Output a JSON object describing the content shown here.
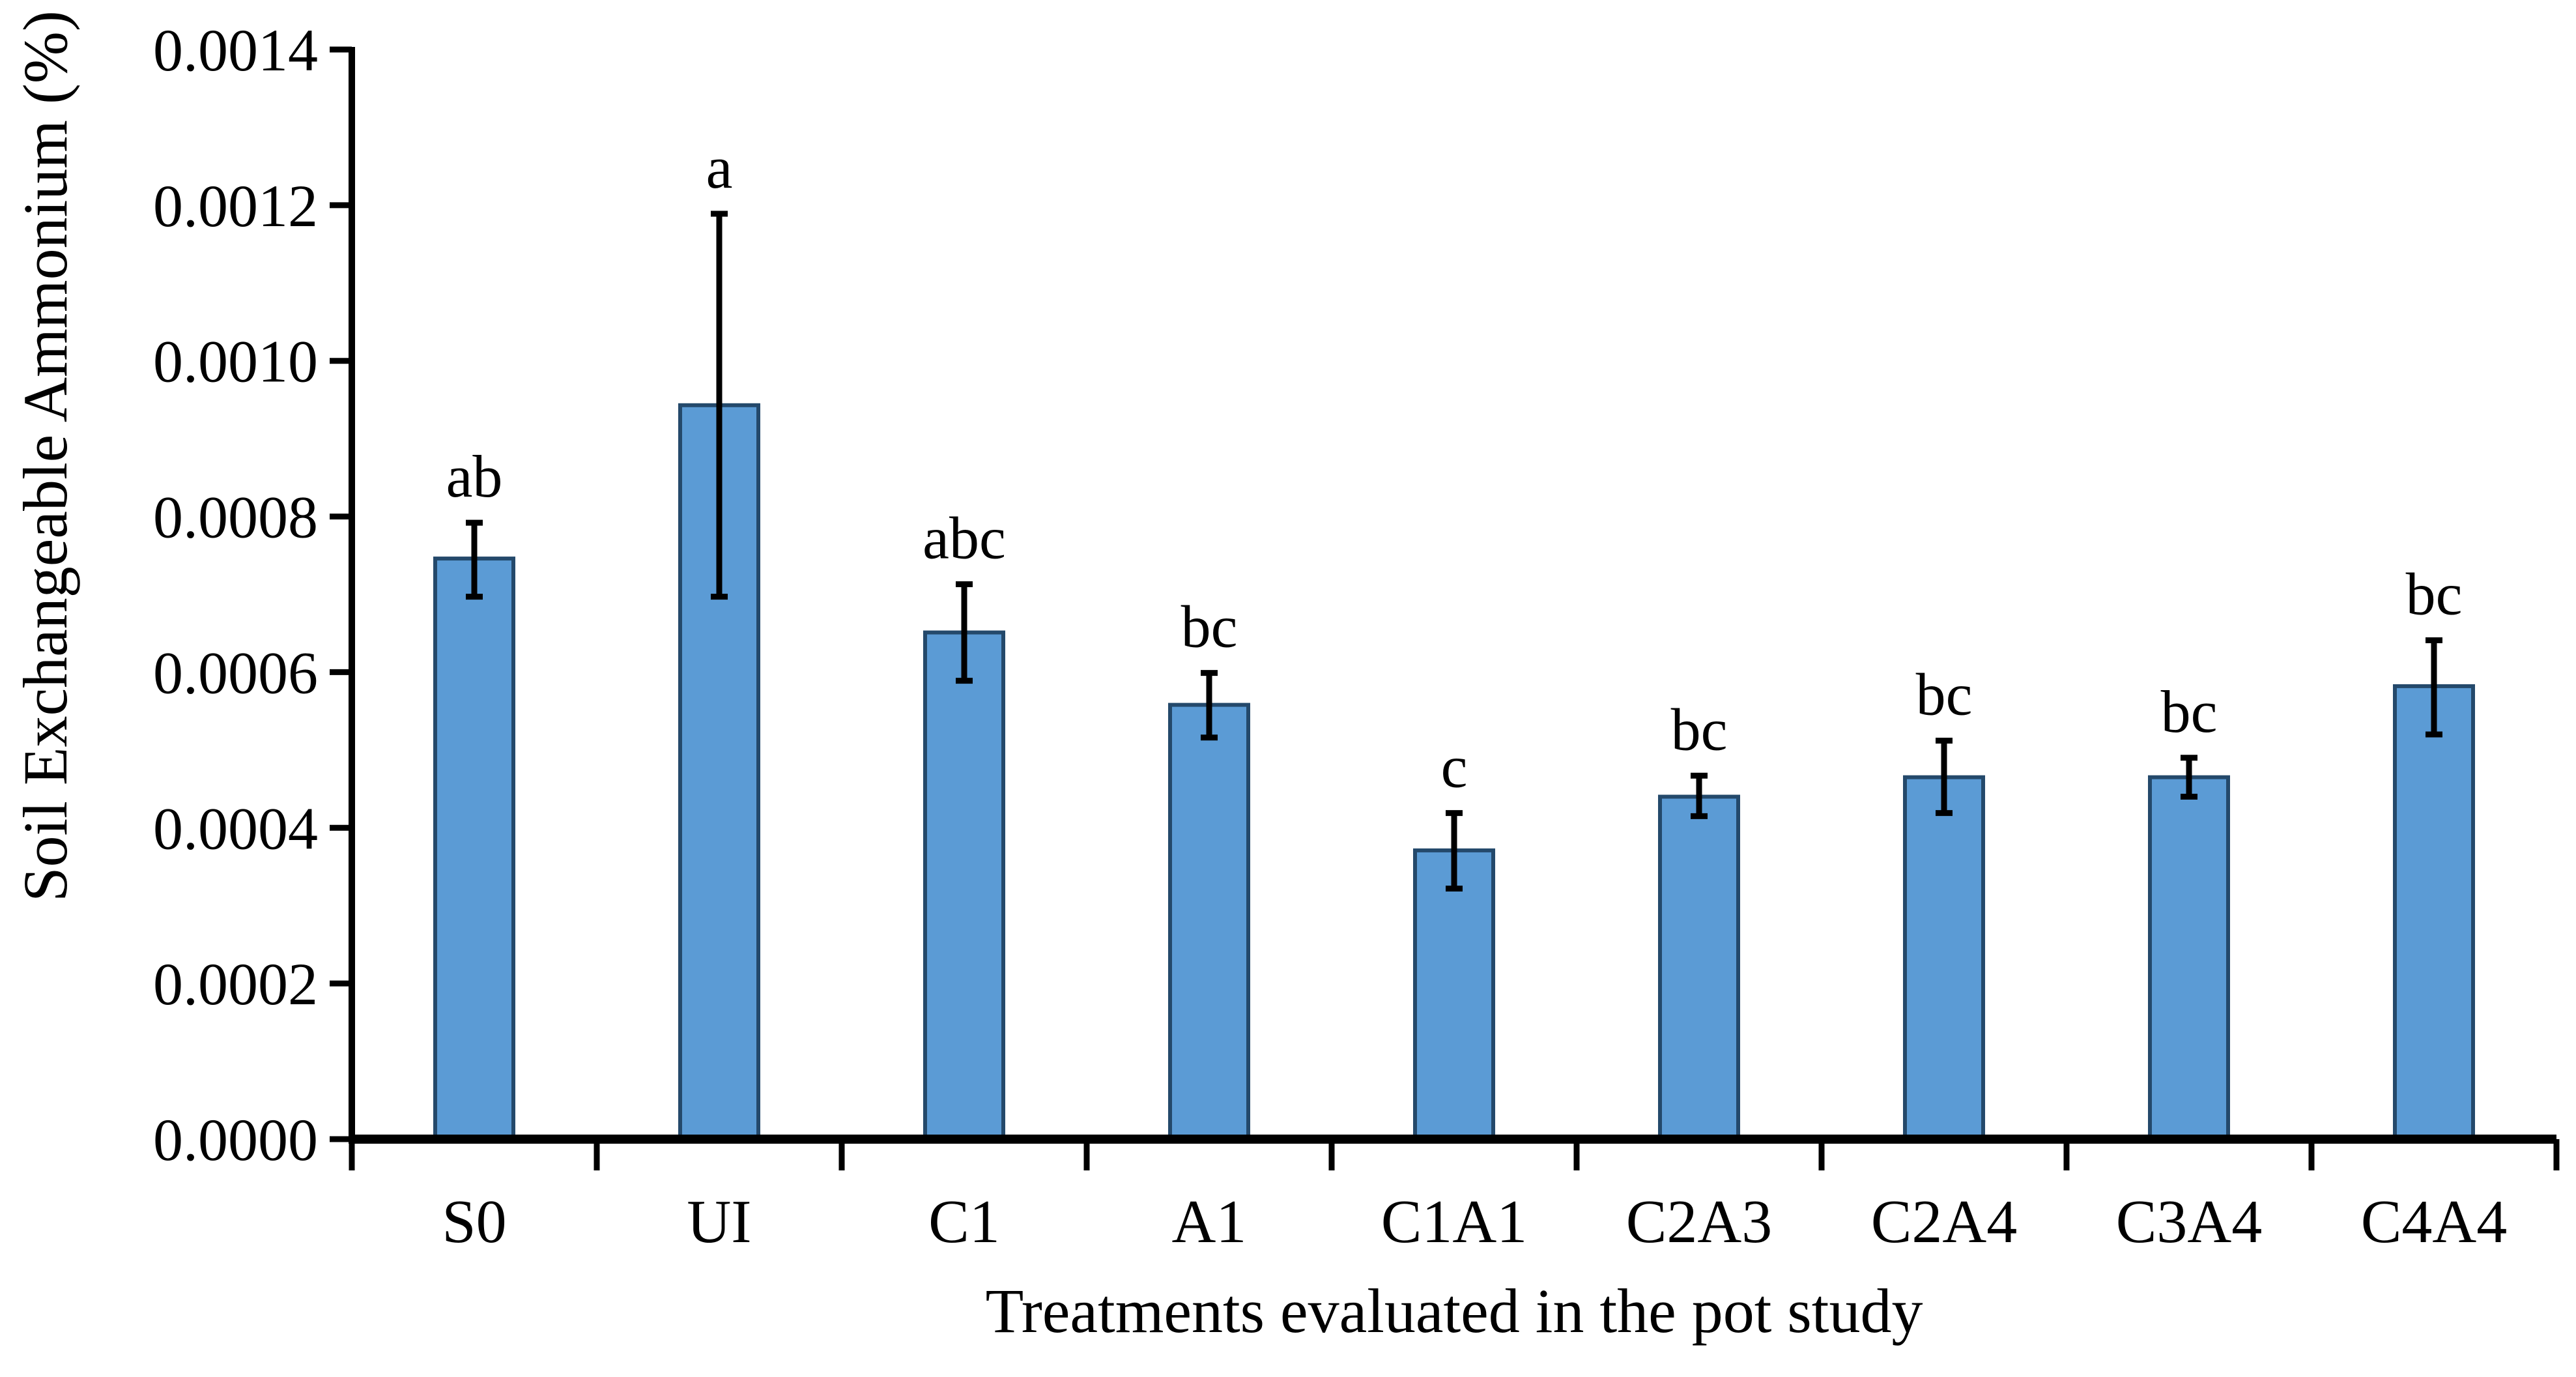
{
  "chart_data": {
    "type": "bar",
    "title": "",
    "xlabel": "Treatments evaluated in the pot study",
    "ylabel": "Soil Exchangeable Ammonium (%)",
    "categories": [
      "S0",
      "UI",
      "C1",
      "A1",
      "C1A1",
      "C2A3",
      "C2A4",
      "C3A4",
      "C4A4"
    ],
    "values": [
      0.000746,
      0.000943,
      0.000651,
      0.000558,
      0.000371,
      0.00044,
      0.000465,
      0.000465,
      0.000582
    ],
    "error_plus": [
      4.6e-05,
      0.000246,
      6.2e-05,
      4.1e-05,
      4.8e-05,
      2.7e-05,
      4.7e-05,
      2.5e-05,
      5.9e-05
    ],
    "error_minus": [
      4.9e-05,
      0.000246,
      6.2e-05,
      4.2e-05,
      4.9e-05,
      2.5e-05,
      4.6e-05,
      2.5e-05,
      6.2e-05
    ],
    "sig_letters": [
      "ab",
      "a",
      "abc",
      "bc",
      "c",
      "bc",
      "bc",
      "bc",
      "bc"
    ],
    "ylim": [
      0.0,
      0.0014
    ],
    "ytick_step": 0.0002,
    "ytick_labels": [
      "0.0000",
      "0.0002",
      "0.0004",
      "0.0006",
      "0.0008",
      "0.0010",
      "0.0012",
      "0.0014"
    ],
    "grid": false,
    "legend": "none",
    "error_bar_style": "both-ends-with-caps"
  },
  "style": {
    "bar_fill": "#5B9BD5",
    "bar_border": "#24496B",
    "error_color": "#000000",
    "axis_color": "#000000",
    "text_color": "#000000",
    "background": "#FFFFFF"
  }
}
